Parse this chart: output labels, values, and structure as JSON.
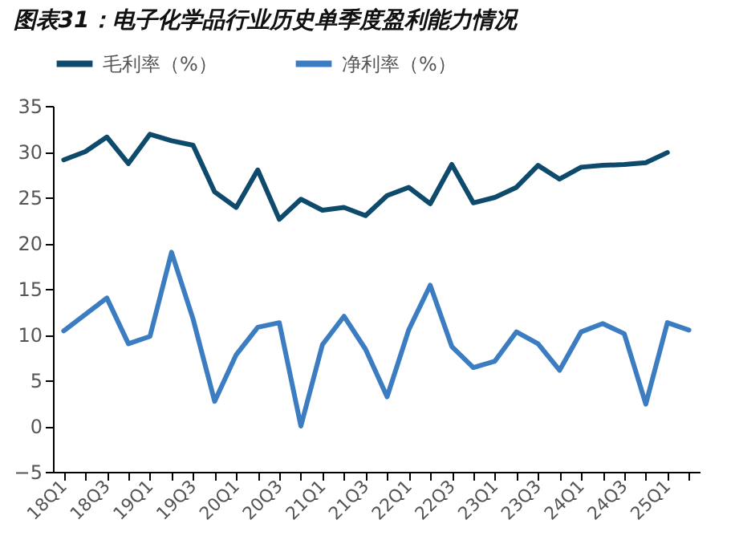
{
  "chart_data": {
    "type": "line",
    "title": "图表31：电子化学品行业历史单季度盈利能力情况",
    "categories": [
      "18Q1",
      null,
      "18Q3",
      null,
      "19Q1",
      null,
      "19Q3",
      null,
      "20Q1",
      null,
      "20Q3",
      null,
      "21Q1",
      null,
      "21Q3",
      null,
      "22Q1",
      null,
      "22Q3",
      null,
      "23Q1",
      null,
      "23Q3",
      null,
      "24Q1",
      null,
      "24Q3",
      null,
      "25Q1",
      null
    ],
    "series": [
      {
        "name": "毛利率（%）",
        "color": "#0d4a6b",
        "values": [
          29.1,
          30.0,
          31.6,
          28.7,
          31.9,
          31.2,
          30.7,
          25.6,
          23.9,
          28.0,
          22.6,
          24.8,
          23.6,
          23.9,
          23.0,
          25.2,
          26.1,
          24.3,
          28.6,
          24.4,
          25.0,
          26.1,
          28.5,
          27.0,
          28.3,
          28.5,
          28.6,
          28.8,
          29.9,
          null
        ]
      },
      {
        "name": "净利率（%）",
        "color": "#3b7dc0",
        "values": [
          10.4,
          12.2,
          14.0,
          9.0,
          9.8,
          19.0,
          11.7,
          2.7,
          7.8,
          10.8,
          11.3,
          0,
          8.9,
          12.0,
          8.4,
          3.2,
          10.5,
          15.4,
          8.7,
          6.4,
          7.1,
          10.3,
          9.0,
          6.1,
          10.3,
          11.2,
          10.1,
          2.4,
          11.3,
          10.5
        ]
      }
    ],
    "ylim": [
      -5,
      35
    ],
    "yticks": [
      -5,
      0,
      5,
      10,
      15,
      20,
      25,
      30,
      35
    ],
    "grid": false,
    "legend": "top"
  }
}
